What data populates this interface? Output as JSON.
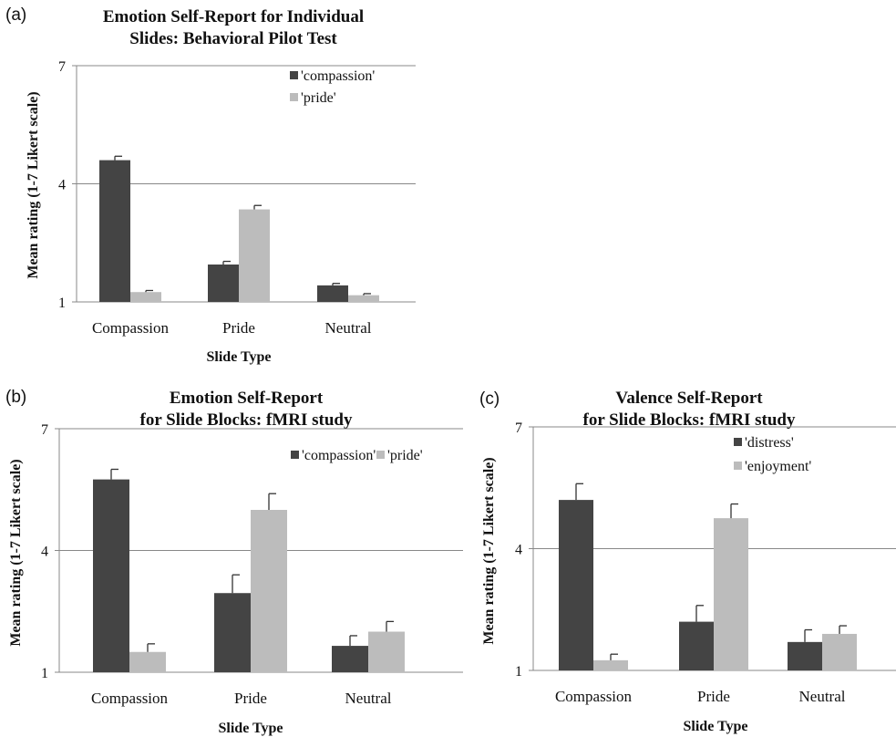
{
  "chart_data": [
    {
      "panel": "(a)",
      "type": "bar",
      "title_lines": [
        "Emotion Self-Report for Individual",
        "Slides: Behavioral Pilot Test"
      ],
      "xlabel": "Slide Type",
      "ylabel": "Mean rating (1-7 Likert scale)",
      "ylim": [
        1,
        7
      ],
      "yticks": [
        "1",
        "4",
        "7"
      ],
      "grid": true,
      "legend_position": "top-right",
      "legend_layout": "vertical",
      "categories": [
        "Compassion",
        "Pride",
        "Neutral"
      ],
      "series": [
        {
          "name": "'compassion'",
          "color": "#444444",
          "values": [
            4.6,
            1.95,
            1.42
          ],
          "errors": [
            0.1,
            0.08,
            0.05
          ]
        },
        {
          "name": "'pride'",
          "color": "#bcbcbc",
          "values": [
            1.25,
            3.35,
            1.17
          ],
          "errors": [
            0.04,
            0.1,
            0.04
          ]
        }
      ]
    },
    {
      "panel": "(b)",
      "type": "bar",
      "title_lines": [
        "Emotion Self-Report",
        "for Slide Blocks: fMRI study"
      ],
      "xlabel": "Slide Type",
      "ylabel": "Mean rating (1-7 Likert scale)",
      "ylim": [
        1,
        7
      ],
      "yticks": [
        "1",
        "4",
        "7"
      ],
      "grid": true,
      "legend_position": "top-right",
      "legend_layout": "horizontal",
      "categories": [
        "Compassion",
        "Pride",
        "Neutral"
      ],
      "series": [
        {
          "name": "'compassion'",
          "color": "#444444",
          "values": [
            5.75,
            2.95,
            1.65
          ],
          "errors": [
            0.25,
            0.45,
            0.25
          ]
        },
        {
          "name": "'pride'",
          "color": "#bcbcbc",
          "values": [
            1.5,
            5.0,
            2.0
          ],
          "errors": [
            0.2,
            0.4,
            0.25
          ]
        }
      ]
    },
    {
      "panel": "(c)",
      "type": "bar",
      "title_lines": [
        "Valence Self-Report",
        "for Slide Blocks: fMRI study"
      ],
      "xlabel": "Slide Type",
      "ylabel": "Mean rating (1-7 Likert scale)",
      "ylim": [
        1,
        7
      ],
      "yticks": [
        "1",
        "4",
        "7"
      ],
      "grid": true,
      "legend_position": "top-right",
      "legend_layout": "vertical",
      "categories": [
        "Compassion",
        "Pride",
        "Neutral"
      ],
      "series": [
        {
          "name": "'distress'",
          "color": "#444444",
          "values": [
            5.2,
            2.2,
            1.7
          ],
          "errors": [
            0.4,
            0.4,
            0.3
          ]
        },
        {
          "name": "'enjoyment'",
          "color": "#bcbcbc",
          "values": [
            1.25,
            4.75,
            1.9
          ],
          "errors": [
            0.15,
            0.35,
            0.2
          ]
        }
      ]
    }
  ]
}
